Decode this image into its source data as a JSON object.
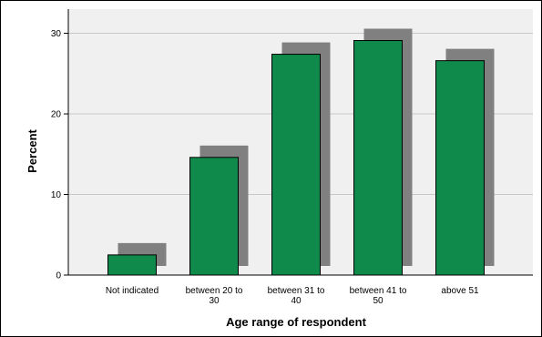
{
  "chart_data": {
    "type": "bar",
    "title": "",
    "xlabel": "Age range of respondent",
    "ylabel": "Percent",
    "categories": [
      [
        "Not indicated"
      ],
      [
        "between 20 to",
        "30"
      ],
      [
        "between 31 to",
        "40"
      ],
      [
        "between 41 to",
        "50"
      ],
      [
        "above 51"
      ]
    ],
    "values": [
      2.5,
      14.6,
      27.4,
      29.1,
      26.6
    ],
    "ylim": [
      0,
      33
    ],
    "yticks": [
      0,
      10,
      20,
      30
    ],
    "grid": true,
    "legend": "none",
    "colors": {
      "bar_fill": "#108a4a",
      "bar_stroke": "#000000",
      "bar_shadow": "#808080",
      "plot_background": "#f0f0f0",
      "gridline": "#c8c8c8",
      "frame": "#000000"
    }
  }
}
